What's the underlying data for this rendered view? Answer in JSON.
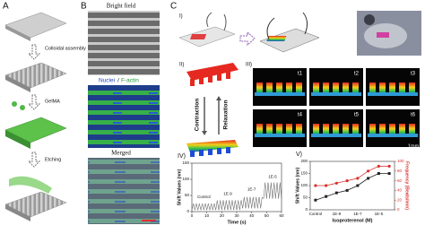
{
  "panel_labels": [
    "A",
    "B",
    "C"
  ],
  "panel_a": {
    "steps": [
      "Colloidal assembly",
      "GelMA",
      "Etching"
    ]
  },
  "panel_b": {
    "bright_field": "Bright field",
    "nuclei": "Nuclei",
    "slash": "/",
    "factin": "F-actin",
    "merged": "Merged"
  },
  "panel_c": {
    "sub_labels": [
      "I)",
      "II)",
      "III)"
    ],
    "contraction": "Contraction",
    "relaxation": "Relaxation",
    "frames": [
      "t1",
      "t2",
      "t3",
      "t4",
      "t5",
      "t6"
    ],
    "scale": "1mm"
  },
  "chart_data": [
    {
      "type": "line",
      "panel": "IV)",
      "xlabel": "Time (s)",
      "ylabel": "Shift Values (nm)",
      "annotations": [
        "Control",
        "1E-9",
        "1E-7",
        "1E-5"
      ],
      "x": [
        0,
        1,
        2,
        3,
        4,
        5,
        6,
        7,
        8,
        9,
        10,
        11,
        12,
        13,
        14,
        15,
        16,
        17,
        18,
        19,
        20,
        21,
        22,
        23,
        24,
        25,
        26,
        27,
        28,
        29,
        30,
        31,
        32,
        33,
        34,
        35,
        36,
        37,
        38,
        39,
        40,
        41,
        42,
        43,
        44,
        45,
        46,
        47,
        48,
        49,
        50,
        51,
        52,
        53,
        54,
        55,
        56,
        57,
        58,
        59,
        60
      ],
      "series": [
        {
          "color": "#555555",
          "values": [
            5,
            25,
            5,
            25,
            5,
            25,
            5,
            25,
            5,
            25,
            5,
            25,
            5,
            25,
            5,
            25,
            5,
            35,
            5,
            35,
            5,
            35,
            5,
            35,
            5,
            35,
            5,
            35,
            5,
            35,
            5,
            35,
            5,
            35,
            10,
            45,
            10,
            45,
            10,
            45,
            10,
            45,
            10,
            45,
            10,
            45,
            10,
            45,
            40,
            90,
            40,
            90,
            40,
            90,
            40,
            90,
            40,
            90,
            40,
            90,
            40
          ]
        }
      ],
      "xlim": [
        0,
        60
      ],
      "xticks": [
        0,
        10,
        20,
        30,
        40,
        50,
        60
      ],
      "ylim": [
        0,
        150
      ],
      "yticks": [
        0,
        50,
        100,
        150
      ]
    },
    {
      "type": "line",
      "panel": "V)",
      "xlabel": "Isoproterenol (M)",
      "ylabel": "Shift Values (nm)",
      "y2label": "Frequency (Beats/min)",
      "categories": [
        "Control",
        null,
        "1E-9",
        null,
        "1E-7",
        null,
        "1E-5",
        null
      ],
      "series": [
        {
          "color": "#222222",
          "values": [
            40,
            55,
            70,
            80,
            100,
            130,
            150,
            150
          ]
        },
        {
          "color": "#d9302c",
          "axis": "y2",
          "values": [
            50,
            50,
            55,
            60,
            65,
            80,
            90,
            90
          ]
        }
      ],
      "ylim": [
        0,
        200
      ],
      "yticks": [
        0,
        50,
        100,
        150,
        200
      ],
      "y2lim": [
        0,
        100
      ],
      "y2ticks": [
        0,
        20,
        40,
        60,
        80,
        100
      ]
    }
  ]
}
